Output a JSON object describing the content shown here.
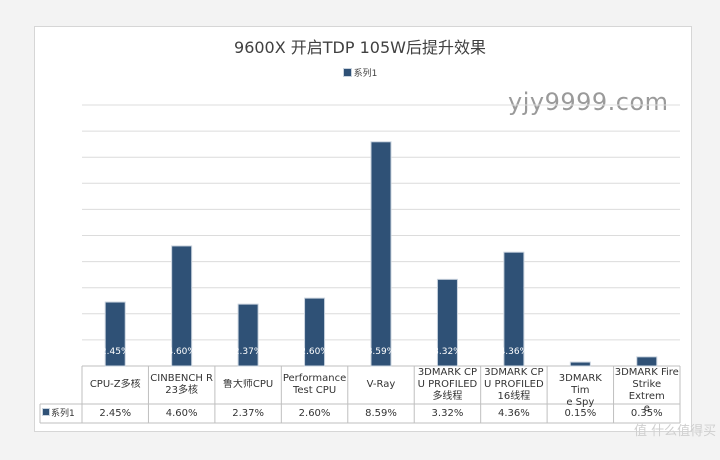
{
  "chart_data": {
    "type": "bar",
    "title": "9600X 开启TDP 105W后提升效果",
    "categories": [
      "CPU-Z多核",
      "CINBENCH R\n23多核",
      "鲁大师CPU",
      "Performance\nTest CPU",
      "V-Ray",
      "3DMARK CP\nU PROFILED\n多线程",
      "3DMARK CP\nU PROFILED\n16线程",
      "3DMARK Tim\ne Spy",
      "3DMARK Fire\nStrike Extrem\ne"
    ],
    "series": [
      {
        "name": "系列1",
        "values": [
          2.45,
          4.6,
          2.37,
          2.6,
          8.59,
          3.32,
          4.36,
          0.15,
          0.35
        ],
        "labels": [
          "2.45%",
          "4.60%",
          "2.37%",
          "2.60%",
          "8.59%",
          "3.32%",
          "4.36%",
          "0.15%",
          "0.35%"
        ]
      }
    ],
    "ylim": [
      0,
      10
    ],
    "grid": true,
    "legend_position": "top",
    "data_table": true,
    "bar_color": "#2f5176"
  },
  "watermark": "yjy9999.com",
  "corner_watermark": "值 什么值得买"
}
